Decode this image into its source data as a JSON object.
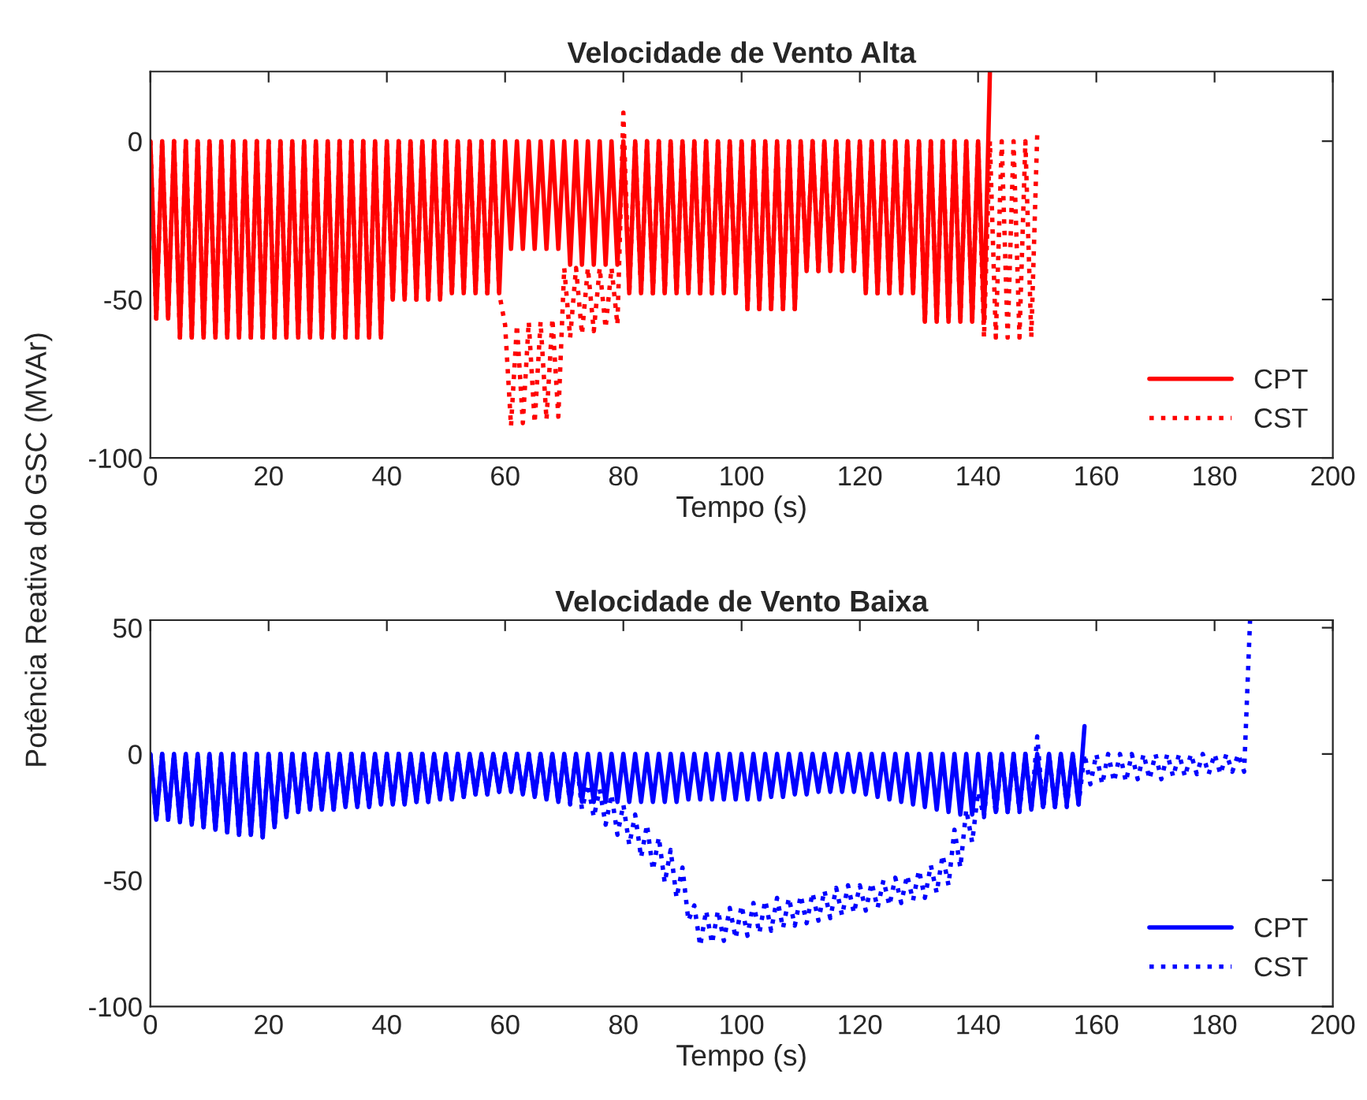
{
  "chart_data": [
    {
      "type": "line",
      "title": "Velocidade de Vento Alta",
      "xlabel": "Tempo (s)",
      "ylabel": "Potência Reativa do GSC (MVAr)",
      "xlim": [
        0,
        200
      ],
      "xticks": [
        0,
        20,
        40,
        60,
        80,
        100,
        120,
        140,
        160,
        180,
        200
      ],
      "ylim": [
        -100,
        22
      ],
      "yticks": [
        -100,
        -50,
        0
      ],
      "grid": false,
      "legend": "bottom right",
      "x": [
        0,
        1,
        2,
        3,
        4,
        5,
        6,
        7,
        8,
        9,
        10,
        11,
        12,
        13,
        14,
        15,
        16,
        17,
        18,
        19,
        20,
        21,
        22,
        23,
        24,
        25,
        26,
        27,
        28,
        29,
        30,
        31,
        32,
        33,
        34,
        35,
        36,
        37,
        38,
        39,
        40,
        41,
        42,
        43,
        44,
        45,
        46,
        47,
        48,
        49,
        50,
        51,
        52,
        53,
        54,
        55,
        56,
        57,
        58,
        59,
        60,
        61,
        62,
        63,
        64,
        65,
        66,
        67,
        68,
        69,
        70,
        71,
        72,
        73,
        74,
        75,
        76,
        77,
        78,
        79,
        80,
        81,
        82,
        83,
        84,
        85,
        86,
        87,
        88,
        89,
        90,
        91,
        92,
        93,
        94,
        95,
        96,
        97,
        98,
        99,
        100,
        101,
        102,
        103,
        104,
        105,
        106,
        107,
        108,
        109,
        110,
        111,
        112,
        113,
        114,
        115,
        116,
        117,
        118,
        119,
        120,
        121,
        122,
        123,
        124,
        125,
        126,
        127,
        128,
        129,
        130,
        131,
        132,
        133,
        134,
        135,
        136,
        137,
        138,
        139,
        140,
        141,
        142,
        143,
        144,
        145,
        146,
        147,
        148,
        149,
        150
      ],
      "series": [
        {
          "name": "CPT",
          "color": "#ff0000",
          "line_style": "solid",
          "values": [
            0,
            -56,
            0,
            -56,
            0,
            -62,
            0,
            -62,
            0,
            -62,
            0,
            -62,
            0,
            -62,
            0,
            -62,
            0,
            -62,
            0,
            -62,
            0,
            -62,
            0,
            -62,
            0,
            -62,
            0,
            -62,
            0,
            -62,
            0,
            -62,
            0,
            -62,
            0,
            -62,
            0,
            -62,
            0,
            -62,
            0,
            -50,
            0,
            -50,
            0,
            -50,
            0,
            -50,
            0,
            -50,
            0,
            -48,
            0,
            -48,
            0,
            -48,
            0,
            -48,
            0,
            -48,
            0,
            -34,
            0,
            -34,
            0,
            -34,
            0,
            -34,
            0,
            -34,
            0,
            -39,
            0,
            -39,
            0,
            -39,
            0,
            -39,
            0,
            -39,
            0,
            -48,
            0,
            -48,
            0,
            -48,
            0,
            -48,
            0,
            -48,
            0,
            -48,
            0,
            -48,
            0,
            -48,
            0,
            -48,
            0,
            -48,
            0,
            -53,
            0,
            -53,
            0,
            -53,
            0,
            -53,
            0,
            -53,
            0,
            -41,
            0,
            -41,
            0,
            -41,
            0,
            -41,
            0,
            -41,
            0,
            -48,
            0,
            -48,
            0,
            -48,
            0,
            -48,
            0,
            -48,
            0,
            -57,
            0,
            -57,
            0,
            -57,
            0,
            -57,
            0,
            -57,
            0,
            -57,
            22,
            null,
            null,
            null,
            null,
            null,
            null,
            null,
            null
          ]
        },
        {
          "name": "CST",
          "color": "#ff0000",
          "line_style": "dotted",
          "values": [
            0,
            -56,
            0,
            -56,
            0,
            -62,
            0,
            -62,
            0,
            -62,
            0,
            -62,
            0,
            -62,
            0,
            -62,
            0,
            -62,
            0,
            -62,
            0,
            -62,
            0,
            -62,
            0,
            -62,
            0,
            -62,
            0,
            -62,
            0,
            -62,
            0,
            -62,
            0,
            -62,
            0,
            -62,
            0,
            -62,
            0,
            -50,
            0,
            -50,
            0,
            -50,
            0,
            -50,
            0,
            -50,
            0,
            -48,
            0,
            -48,
            0,
            -48,
            0,
            -48,
            0,
            -48,
            -58,
            -90,
            -58,
            -89,
            -57,
            -89,
            -57,
            -88,
            -56,
            -87,
            -40,
            -62,
            -40,
            -61,
            -40,
            -60,
            -40,
            -59,
            -40,
            -58,
            9,
            -48,
            0,
            -48,
            0,
            -48,
            0,
            -48,
            0,
            -48,
            0,
            -48,
            0,
            -48,
            0,
            -48,
            0,
            -48,
            0,
            -48,
            0,
            -53,
            0,
            -53,
            0,
            -53,
            0,
            -53,
            0,
            -53,
            0,
            -41,
            0,
            -41,
            0,
            -41,
            0,
            -41,
            0,
            -41,
            0,
            -48,
            0,
            -48,
            0,
            -48,
            0,
            -48,
            0,
            -48,
            0,
            -57,
            0,
            -57,
            0,
            -57,
            0,
            -57,
            0,
            -57,
            0,
            -62,
            0,
            -62,
            0,
            -62,
            0,
            -62,
            0,
            -62,
            2
          ]
        }
      ]
    },
    {
      "type": "line",
      "title": "Velocidade de Vento Baixa",
      "xlabel": "Tempo (s)",
      "xlim": [
        0,
        200
      ],
      "xticks": [
        0,
        20,
        40,
        60,
        80,
        100,
        120,
        140,
        160,
        180,
        200
      ],
      "ylim": [
        -100,
        53
      ],
      "yticks": [
        -100,
        -50,
        0,
        50
      ],
      "grid": false,
      "legend": "bottom right",
      "x": [
        0,
        1,
        2,
        3,
        4,
        5,
        6,
        7,
        8,
        9,
        10,
        11,
        12,
        13,
        14,
        15,
        16,
        17,
        18,
        19,
        20,
        21,
        22,
        23,
        24,
        25,
        26,
        27,
        28,
        29,
        30,
        31,
        32,
        33,
        34,
        35,
        36,
        37,
        38,
        39,
        40,
        41,
        42,
        43,
        44,
        45,
        46,
        47,
        48,
        49,
        50,
        51,
        52,
        53,
        54,
        55,
        56,
        57,
        58,
        59,
        60,
        61,
        62,
        63,
        64,
        65,
        66,
        67,
        68,
        69,
        70,
        71,
        72,
        73,
        74,
        75,
        76,
        77,
        78,
        79,
        80,
        81,
        82,
        83,
        84,
        85,
        86,
        87,
        88,
        89,
        90,
        91,
        92,
        93,
        94,
        95,
        96,
        97,
        98,
        99,
        100,
        101,
        102,
        103,
        104,
        105,
        106,
        107,
        108,
        109,
        110,
        111,
        112,
        113,
        114,
        115,
        116,
        117,
        118,
        119,
        120,
        121,
        122,
        123,
        124,
        125,
        126,
        127,
        128,
        129,
        130,
        131,
        132,
        133,
        134,
        135,
        136,
        137,
        138,
        139,
        140,
        141,
        142,
        143,
        144,
        145,
        146,
        147,
        148,
        149,
        150,
        151,
        152,
        153,
        154,
        155,
        156,
        157,
        158,
        159,
        160,
        161,
        162,
        163,
        164,
        165,
        166,
        167,
        168,
        169,
        170,
        171,
        172,
        173,
        174,
        175,
        176,
        177,
        178,
        179,
        180,
        181,
        182,
        183,
        184,
        185,
        186
      ],
      "series": [
        {
          "name": "CPT",
          "color": "#0000ff",
          "line_style": "solid",
          "values": [
            0,
            -26,
            0,
            -26,
            0,
            -27,
            0,
            -28,
            0,
            -29,
            0,
            -30,
            0,
            -31,
            0,
            -32,
            0,
            -32,
            0,
            -33,
            0,
            -29,
            0,
            -25,
            0,
            -23,
            0,
            -22,
            0,
            -22,
            0,
            -22,
            0,
            -21,
            0,
            -21,
            0,
            -21,
            0,
            -20,
            0,
            -20,
            0,
            -20,
            0,
            -19,
            0,
            -19,
            0,
            -18,
            0,
            -18,
            0,
            -17,
            0,
            -16,
            0,
            -16,
            0,
            -15,
            0,
            -15,
            0,
            -16,
            0,
            -17,
            0,
            -18,
            0,
            -19,
            0,
            -19,
            0,
            -19,
            0,
            -19,
            0,
            -19,
            0,
            -19,
            0,
            -19,
            0,
            -19,
            0,
            -19,
            0,
            -19,
            0,
            -19,
            0,
            -18,
            0,
            -18,
            0,
            -18,
            0,
            -18,
            0,
            -18,
            0,
            -18,
            0,
            -18,
            0,
            -17,
            0,
            -17,
            0,
            -16,
            0,
            -16,
            0,
            -15,
            0,
            -15,
            0,
            -15,
            0,
            -15,
            0,
            -16,
            0,
            -17,
            0,
            -18,
            0,
            -19,
            0,
            -20,
            0,
            -21,
            0,
            -22,
            0,
            -23,
            0,
            -24,
            0,
            -24,
            0,
            -24,
            0,
            -23,
            0,
            -23,
            0,
            -22,
            0,
            -22,
            0,
            -21,
            0,
            -21,
            0,
            -20,
            0,
            -20,
            11,
            null,
            null,
            null,
            null,
            null,
            null,
            null,
            null,
            null,
            null,
            null,
            null,
            null,
            null,
            null,
            null,
            null,
            null,
            null,
            null,
            null,
            null,
            null,
            null,
            null,
            null,
            null,
            null
          ]
        },
        {
          "name": "CST",
          "color": "#0000ff",
          "line_style": "dotted",
          "values": [
            0,
            -26,
            0,
            -26,
            0,
            -27,
            0,
            -28,
            0,
            -29,
            0,
            -30,
            0,
            -31,
            0,
            -32,
            0,
            -32,
            0,
            -33,
            0,
            -29,
            0,
            -25,
            0,
            -23,
            0,
            -22,
            0,
            -22,
            0,
            -22,
            0,
            -21,
            0,
            -21,
            0,
            -21,
            0,
            -20,
            0,
            -20,
            0,
            -20,
            0,
            -19,
            0,
            -19,
            0,
            -18,
            0,
            -18,
            0,
            -17,
            0,
            -16,
            0,
            -16,
            0,
            -15,
            0,
            -15,
            0,
            -16,
            0,
            -17,
            0,
            -18,
            0,
            -19,
            0,
            -20,
            0,
            -22,
            -12,
            -25,
            -14,
            -28,
            -16,
            -32,
            -20,
            -36,
            -24,
            -41,
            -28,
            -46,
            -33,
            -51,
            -38,
            -57,
            -45,
            -66,
            -60,
            -76,
            -62,
            -75,
            -62,
            -74,
            -61,
            -73,
            -60,
            -72,
            -59,
            -71,
            -58,
            -70,
            -57,
            -69,
            -57,
            -68,
            -56,
            -67,
            -55,
            -66,
            -54,
            -65,
            -53,
            -64,
            -52,
            -63,
            -52,
            -62,
            -51,
            -61,
            -50,
            -60,
            -49,
            -59,
            -48,
            -58,
            -46,
            -57,
            -44,
            -55,
            -40,
            -52,
            -30,
            -45,
            -22,
            -35,
            -15,
            -25,
            0,
            -24,
            0,
            -23,
            0,
            -23,
            0,
            -22,
            7,
            -22,
            0,
            -21,
            0,
            -21,
            0,
            -20,
            0,
            -12,
            0,
            -12,
            0,
            -11,
            0,
            -11,
            0,
            -10,
            0,
            -10,
            0,
            -10,
            0,
            -9,
            0,
            -9,
            0,
            -8,
            0,
            -8,
            0,
            -8,
            0,
            -7,
            0,
            -7,
            53
          ]
        }
      ]
    }
  ]
}
